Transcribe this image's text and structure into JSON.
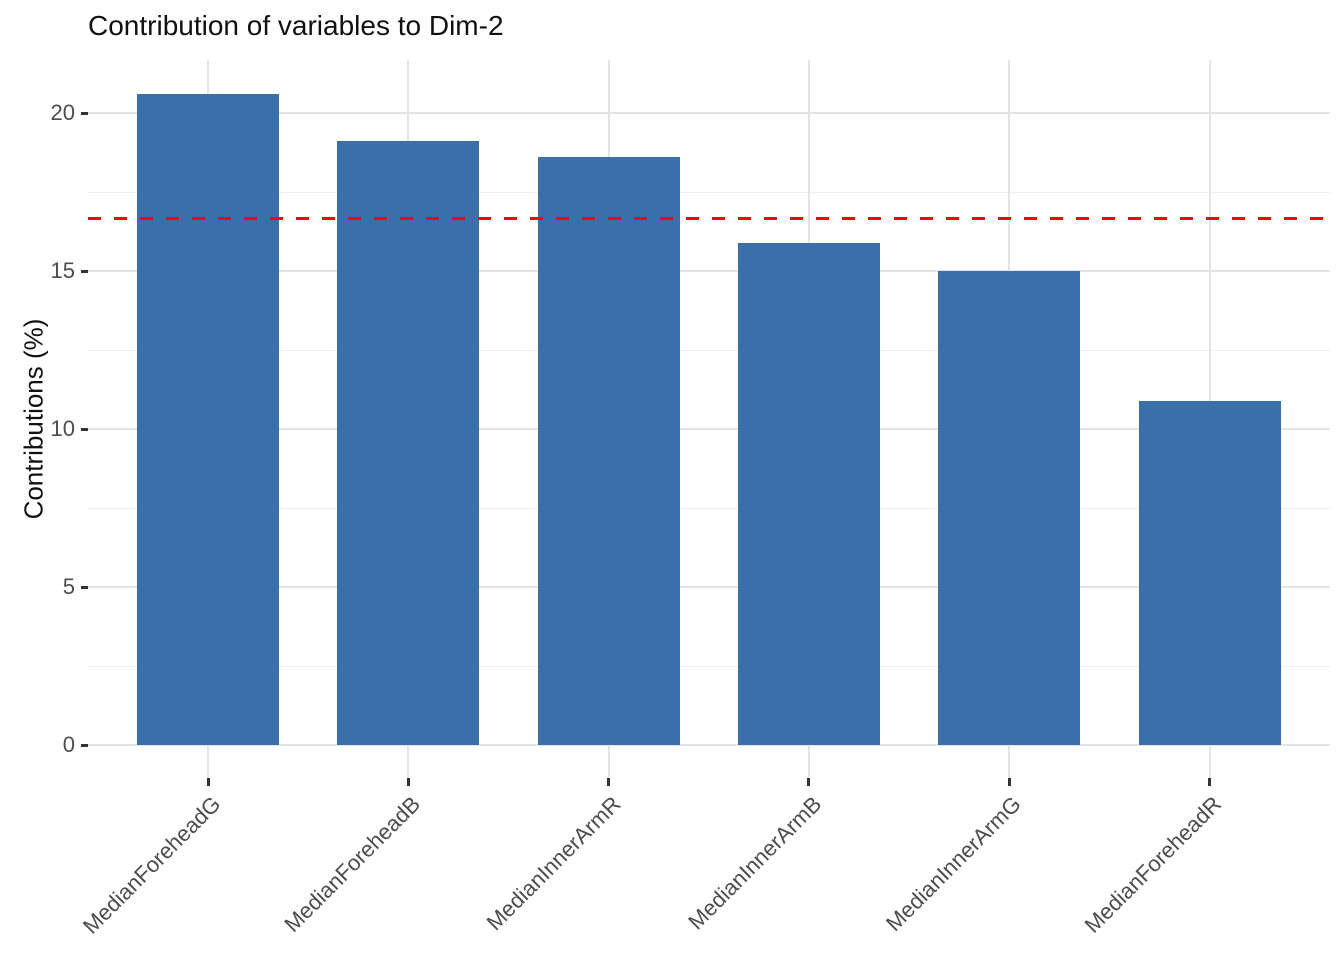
{
  "chart_data": {
    "type": "bar",
    "title": "Contribution of variables to Dim-2",
    "xlabel": "",
    "ylabel": "Contributions (%)",
    "categories": [
      "MedianForeheadG",
      "MedianForeheadB",
      "MedianInnerArmR",
      "MedianInnerArmB",
      "MedianInnerArmG",
      "MedianForeheadR"
    ],
    "values": [
      20.6,
      19.1,
      18.6,
      15.9,
      15.0,
      10.9
    ],
    "y_ticks": [
      0,
      5,
      10,
      15,
      20
    ],
    "y_minor_ticks": [
      2.5,
      7.5,
      12.5,
      17.5
    ],
    "ylim": [
      0,
      21.7
    ],
    "grid": "on",
    "legend": "none",
    "x_label_rotation_deg": 45,
    "reference_line": {
      "value": 16.67,
      "style": "dashed",
      "color": "#FF0000"
    },
    "colors": {
      "bar_fill": "#3B6FA9",
      "grid_major": "#E4E4E4",
      "grid_minor": "#EFEFEF",
      "axis_text": "#4D4D4D",
      "title_text": "#111111",
      "tick_mark": "#333333",
      "background": "#FFFFFF"
    }
  }
}
